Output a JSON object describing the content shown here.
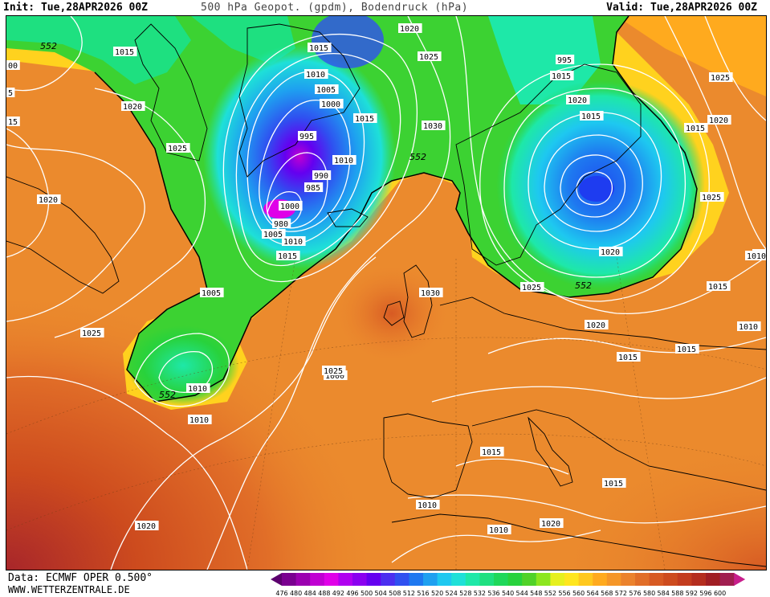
{
  "header": {
    "init": "Init: Tue,28APR2026 00Z",
    "title": "500 hPa Geopot. (gpdm), Bodendruck (hPa)",
    "valid": "Valid: Tue,28APR2026 00Z"
  },
  "footer": {
    "data_source": "Data: ECMWF OPER 0.500°",
    "website": "WWW.WETTERZENTRALE.DE"
  },
  "colors": {
    "geopotential_bands": [
      "#5c006e",
      "#7a0090",
      "#9b00b0",
      "#c000d2",
      "#e000e8",
      "#b000f0",
      "#8a00f0",
      "#6400f0",
      "#4b2ff0",
      "#2f50f0",
      "#1e78f0",
      "#1ea0f0",
      "#1ec8f0",
      "#1ee0d8",
      "#1ee8a8",
      "#1ee080",
      "#1ed85a",
      "#28d23c",
      "#50d228",
      "#8ce61e",
      "#e6f01e",
      "#ffe61e",
      "#ffc81e",
      "#ffaa1e",
      "#f59628",
      "#eb822d",
      "#e16e28",
      "#d75a23",
      "#cd4b1e",
      "#c33c1e",
      "#b42d1e",
      "#a01e23",
      "#a01e50",
      "#c81e8c"
    ]
  },
  "scale_labels": [
    "476",
    "480",
    "484",
    "488",
    "492",
    "496",
    "500",
    "504",
    "508",
    "512",
    "516",
    "520",
    "524",
    "528",
    "532",
    "536",
    "540",
    "544",
    "548",
    "552",
    "556",
    "560",
    "564",
    "568",
    "572",
    "576",
    "580",
    "584",
    "588",
    "592",
    "596",
    "600"
  ],
  "contour_552_labels": [
    "552",
    "552",
    "552",
    "552"
  ],
  "isobar_labels": [
    "1015",
    "1020",
    "1025",
    "1015",
    "1010",
    "1005",
    "1000",
    "995",
    "990",
    "985",
    "980",
    "1000",
    "1005",
    "1010",
    "1015",
    "1020",
    "1025",
    "1030",
    "1015",
    "1010",
    "1020",
    "1025",
    "1010",
    "1005",
    "1000",
    "995",
    "1015",
    "1020",
    "1015",
    "1020",
    "1025",
    "1015",
    "1020",
    "1025",
    "1025",
    "1030",
    "1025",
    "1020",
    "1015",
    "1010",
    "1015",
    "1020",
    "1015",
    "1010",
    "1015",
    "1015",
    "1010",
    "1010",
    "1020",
    "1020",
    "1010",
    "1015",
    "00",
    "5",
    "15"
  ]
}
